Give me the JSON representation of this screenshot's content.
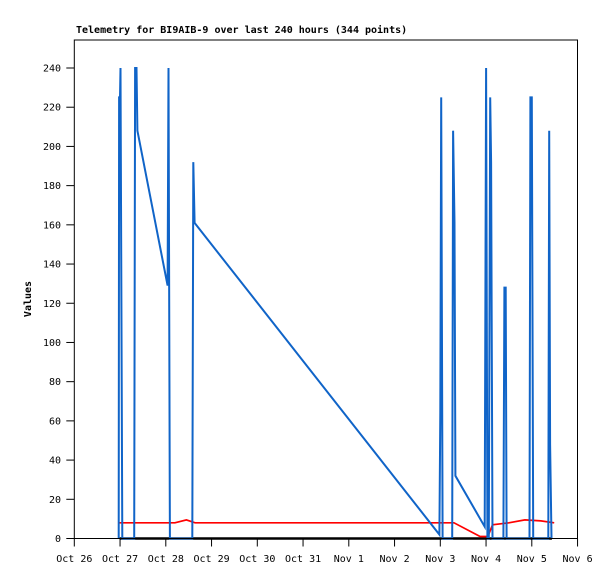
{
  "chart_data": {
    "type": "line",
    "title": "Telemetry for BI9AIB-9 over last 240 hours (344 points)",
    "ylabel": "Values",
    "xlabel": "",
    "grid": false,
    "legend": "none",
    "ylim": [
      0,
      255
    ],
    "y_ticks": [
      0,
      20,
      40,
      60,
      80,
      100,
      120,
      140,
      160,
      180,
      200,
      220,
      240
    ],
    "x_unit": "days since Oct 26",
    "xlim": [
      0,
      11
    ],
    "x_tick_labels": [
      "Oct 26",
      "Oct 27",
      "Oct 28",
      "Oct 29",
      "Oct 30",
      "Oct 31",
      "Nov 1",
      "Nov 2",
      "Nov 3",
      "Nov 4",
      "Nov 5",
      "Nov 6"
    ],
    "frame_color": "#000000",
    "series": [
      {
        "name": "telemetry-channel-blue",
        "color": "#1064c8",
        "width": 2,
        "points": [
          [
            0.97,
            0
          ],
          [
            0.98,
            225
          ],
          [
            1.0,
            225
          ],
          [
            1.01,
            240
          ],
          [
            1.05,
            0
          ],
          [
            1.31,
            0
          ],
          [
            1.33,
            240
          ],
          [
            1.36,
            240
          ],
          [
            1.38,
            208
          ],
          [
            2.04,
            129
          ],
          [
            2.06,
            240
          ],
          [
            2.09,
            0
          ],
          [
            2.58,
            0
          ],
          [
            2.6,
            192
          ],
          [
            2.63,
            161
          ],
          [
            7.98,
            2
          ],
          [
            8.0,
            64
          ],
          [
            8.02,
            225
          ],
          [
            8.05,
            0
          ],
          [
            8.26,
            0
          ],
          [
            8.28,
            208
          ],
          [
            8.31,
            161
          ],
          [
            8.33,
            32
          ],
          [
            8.97,
            6
          ],
          [
            9.0,
            240
          ],
          [
            9.03,
            0
          ],
          [
            9.06,
            0
          ],
          [
            9.09,
            225
          ],
          [
            9.11,
            192
          ],
          [
            9.14,
            0
          ],
          [
            9.38,
            0
          ],
          [
            9.4,
            128
          ],
          [
            9.43,
            128
          ],
          [
            9.45,
            0
          ],
          [
            9.95,
            0
          ],
          [
            9.97,
            225
          ],
          [
            10.0,
            225
          ],
          [
            10.03,
            0
          ],
          [
            10.36,
            0
          ],
          [
            10.38,
            208
          ],
          [
            10.4,
            48
          ],
          [
            10.43,
            0
          ]
        ]
      },
      {
        "name": "telemetry-channel-red",
        "color": "#ff0000",
        "width": 1.7,
        "points": [
          [
            0.97,
            8
          ],
          [
            2.2,
            8
          ],
          [
            2.45,
            9.5
          ],
          [
            2.64,
            8
          ],
          [
            8.3,
            8
          ],
          [
            8.87,
            1
          ],
          [
            9.04,
            1
          ],
          [
            9.14,
            7
          ],
          [
            9.5,
            8
          ],
          [
            9.85,
            9.5
          ],
          [
            10.2,
            9
          ],
          [
            10.49,
            8
          ]
        ]
      },
      {
        "name": "telemetry-channel-black",
        "color": "#000000",
        "width": 2.5,
        "points": [
          [
            0.99,
            0
          ],
          [
            10.44,
            0
          ]
        ]
      }
    ]
  }
}
